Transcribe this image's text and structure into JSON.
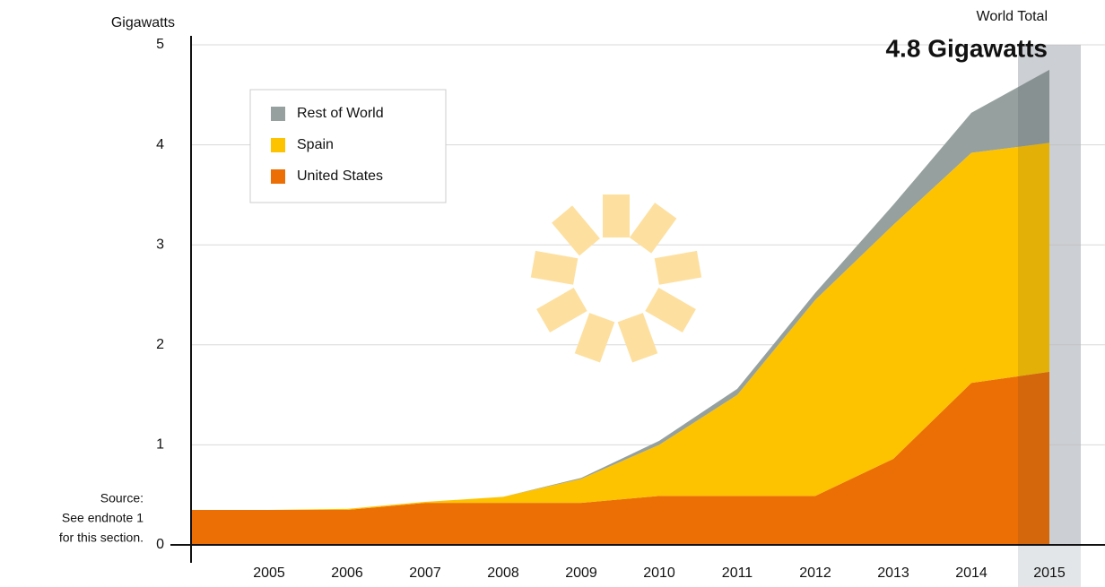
{
  "chart_data": {
    "type": "stacked-area",
    "y_label": "Gigawatts",
    "annotation_title": "World Total",
    "annotation_value": "4.8 Gigawatts",
    "source": [
      "Source:",
      "See endnote 1",
      "for this section."
    ],
    "categories": [
      null,
      "2005",
      "2006",
      "2007",
      "2008",
      "2009",
      "2010",
      "2011",
      "2012",
      "2013",
      "2014",
      "2015"
    ],
    "series": [
      {
        "name": "United States",
        "color": "#ec6f05",
        "values": [
          0.35,
          0.35,
          0.35,
          0.42,
          0.42,
          0.42,
          0.49,
          0.49,
          0.49,
          0.86,
          1.62,
          1.73
        ]
      },
      {
        "name": "Spain",
        "color": "#fdc300",
        "values": [
          0,
          0,
          0.01,
          0.01,
          0.06,
          0.24,
          0.51,
          1.01,
          1.96,
          2.34,
          2.3,
          2.29
        ]
      },
      {
        "name": "Rest of World",
        "color": "#95a09f",
        "values": [
          0,
          0,
          0,
          0,
          0,
          0.01,
          0.04,
          0.06,
          0.07,
          0.2,
          0.4,
          0.73
        ]
      }
    ],
    "ylim": [
      0,
      5
    ],
    "yticks": [
      0,
      1,
      2,
      3,
      4,
      5
    ],
    "grid": true
  }
}
